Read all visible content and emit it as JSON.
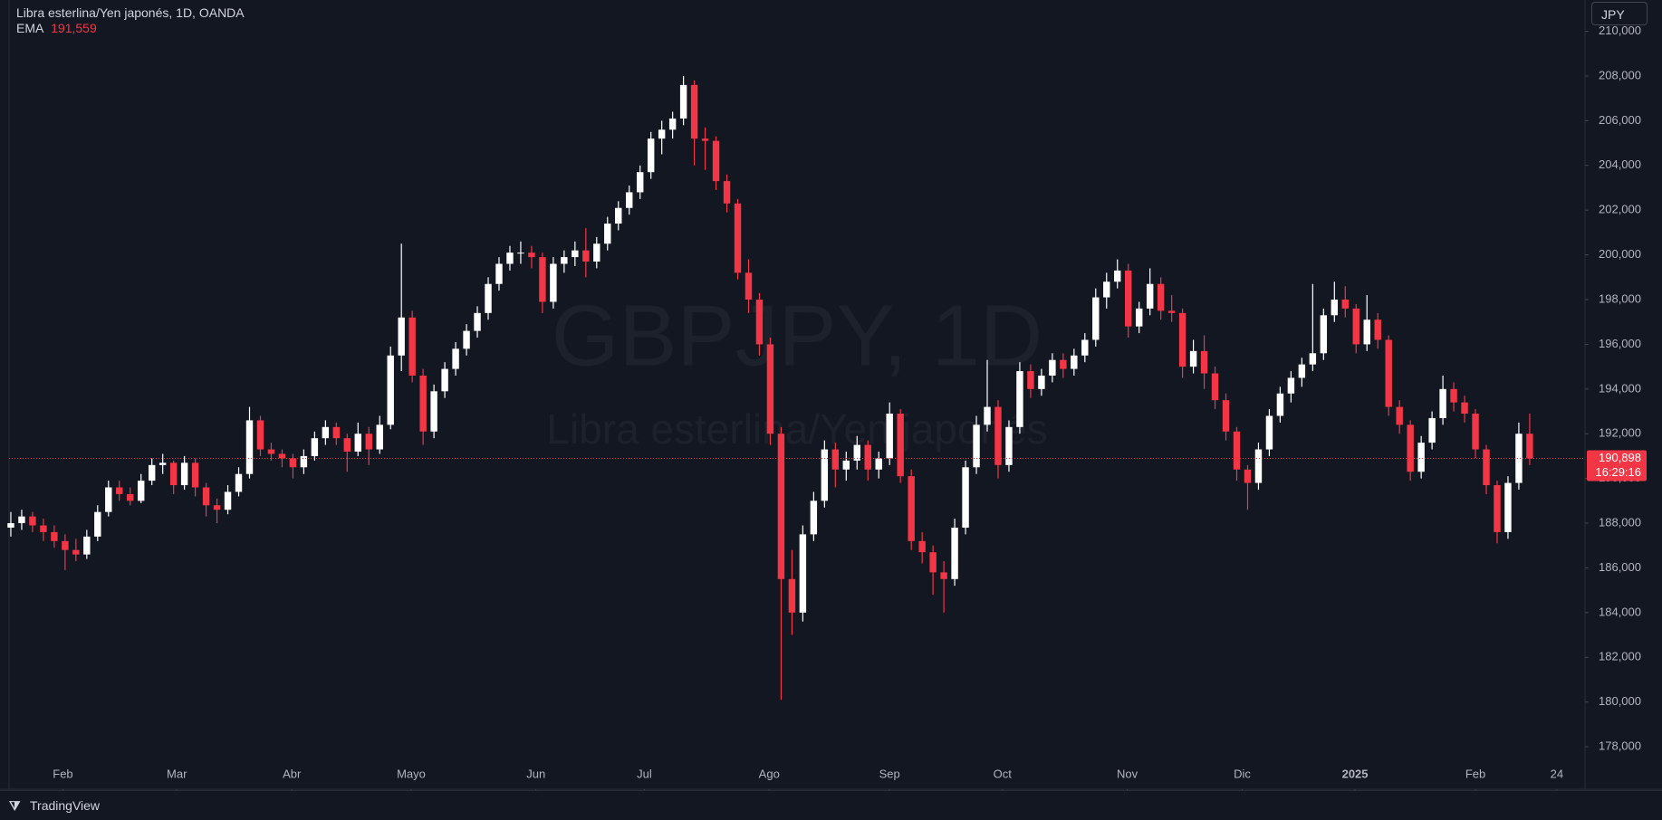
{
  "header": {
    "symbol": "Libra esterlina/Yen japonés, 1D, OANDA",
    "indicator": "EMA",
    "indicator_value": "191,559"
  },
  "watermark": {
    "symbol": "GBPJPY, 1D",
    "name": "Libra esterlina/Yen japonés"
  },
  "currency_button": "JPY",
  "footer": "TradingView",
  "chart_data": {
    "type": "candlestick",
    "up_color": "#ffffff",
    "down_color": "#f23645",
    "candles": [
      [
        187.8,
        188.5,
        187.4,
        188.0
      ],
      [
        188.0,
        188.6,
        187.7,
        188.3
      ],
      [
        188.3,
        188.5,
        187.6,
        187.9
      ],
      [
        187.9,
        188.2,
        187.2,
        187.6
      ],
      [
        187.6,
        187.9,
        186.9,
        187.2
      ],
      [
        187.2,
        187.5,
        185.9,
        186.8
      ],
      [
        186.8,
        187.3,
        186.3,
        186.6
      ],
      [
        186.6,
        187.7,
        186.4,
        187.4
      ],
      [
        187.4,
        188.8,
        187.2,
        188.5
      ],
      [
        188.5,
        189.9,
        188.3,
        189.6
      ],
      [
        189.6,
        189.9,
        189.0,
        189.3
      ],
      [
        189.3,
        189.6,
        188.8,
        189.0
      ],
      [
        189.0,
        190.2,
        188.9,
        189.9
      ],
      [
        189.9,
        190.9,
        189.7,
        190.6
      ],
      [
        190.6,
        191.1,
        190.2,
        190.7
      ],
      [
        190.7,
        190.8,
        189.3,
        189.7
      ],
      [
        189.7,
        191.0,
        189.5,
        190.7
      ],
      [
        190.7,
        190.9,
        189.2,
        189.6
      ],
      [
        189.6,
        189.8,
        188.3,
        188.8
      ],
      [
        188.8,
        189.1,
        188.0,
        188.6
      ],
      [
        188.6,
        189.7,
        188.4,
        189.4
      ],
      [
        189.4,
        190.5,
        189.2,
        190.2
      ],
      [
        190.2,
        193.2,
        190.0,
        192.6
      ],
      [
        192.6,
        192.8,
        191.0,
        191.3
      ],
      [
        191.3,
        191.6,
        190.8,
        191.1
      ],
      [
        191.1,
        191.3,
        190.5,
        190.9
      ],
      [
        190.9,
        191.1,
        190.0,
        190.5
      ],
      [
        190.5,
        191.3,
        190.2,
        191.0
      ],
      [
        191.0,
        192.1,
        190.8,
        191.8
      ],
      [
        191.8,
        192.6,
        191.5,
        192.3
      ],
      [
        192.3,
        192.5,
        191.5,
        191.8
      ],
      [
        191.8,
        192.0,
        190.3,
        191.2
      ],
      [
        191.2,
        192.5,
        191.0,
        192.0
      ],
      [
        192.0,
        192.3,
        190.6,
        191.3
      ],
      [
        191.3,
        192.8,
        191.1,
        192.4
      ],
      [
        192.4,
        195.9,
        192.2,
        195.5
      ],
      [
        195.5,
        200.5,
        194.8,
        197.2
      ],
      [
        197.2,
        197.5,
        194.3,
        194.6
      ],
      [
        194.6,
        194.9,
        191.5,
        192.1
      ],
      [
        192.1,
        194.2,
        191.8,
        193.9
      ],
      [
        193.9,
        195.2,
        193.6,
        194.9
      ],
      [
        194.9,
        196.1,
        194.6,
        195.8
      ],
      [
        195.8,
        196.9,
        195.5,
        196.6
      ],
      [
        196.6,
        197.7,
        196.3,
        197.4
      ],
      [
        197.4,
        199.0,
        197.1,
        198.7
      ],
      [
        198.7,
        199.9,
        198.4,
        199.6
      ],
      [
        199.6,
        200.4,
        199.3,
        200.1
      ],
      [
        200.1,
        200.6,
        199.6,
        200.1
      ],
      [
        200.1,
        200.4,
        199.4,
        199.9
      ],
      [
        199.9,
        200.1,
        197.4,
        197.9
      ],
      [
        197.9,
        199.9,
        197.6,
        199.6
      ],
      [
        199.6,
        200.2,
        199.2,
        199.9
      ],
      [
        199.9,
        200.6,
        199.5,
        200.2
      ],
      [
        200.2,
        201.2,
        199.0,
        199.7
      ],
      [
        199.7,
        200.8,
        199.4,
        200.5
      ],
      [
        200.5,
        201.7,
        200.2,
        201.4
      ],
      [
        201.4,
        202.4,
        201.1,
        202.1
      ],
      [
        202.1,
        203.1,
        201.8,
        202.8
      ],
      [
        202.8,
        204.0,
        202.5,
        203.7
      ],
      [
        203.7,
        205.5,
        203.4,
        205.2
      ],
      [
        205.2,
        206.0,
        204.5,
        205.6
      ],
      [
        205.6,
        206.4,
        205.2,
        206.1
      ],
      [
        206.1,
        208.0,
        205.8,
        207.6
      ],
      [
        207.6,
        207.8,
        204.0,
        205.2
      ],
      [
        205.2,
        205.7,
        203.8,
        205.1
      ],
      [
        205.1,
        205.3,
        202.9,
        203.3
      ],
      [
        203.3,
        203.6,
        201.9,
        202.3
      ],
      [
        202.3,
        202.5,
        198.9,
        199.2
      ],
      [
        199.2,
        199.8,
        197.4,
        198.0
      ],
      [
        198.0,
        198.3,
        195.5,
        196.0
      ],
      [
        196.0,
        196.3,
        191.5,
        192.0
      ],
      [
        192.0,
        192.3,
        180.1,
        185.5
      ],
      [
        185.5,
        186.8,
        183.0,
        184.0
      ],
      [
        184.0,
        187.9,
        183.6,
        187.5
      ],
      [
        187.5,
        189.4,
        187.2,
        189.0
      ],
      [
        189.0,
        191.7,
        188.7,
        191.3
      ],
      [
        191.3,
        191.6,
        189.6,
        190.4
      ],
      [
        190.4,
        191.2,
        189.9,
        190.8
      ],
      [
        190.8,
        191.9,
        190.4,
        191.5
      ],
      [
        191.5,
        191.7,
        189.9,
        190.4
      ],
      [
        190.4,
        191.2,
        190.0,
        190.9
      ],
      [
        190.9,
        193.4,
        190.6,
        192.9
      ],
      [
        192.9,
        193.1,
        189.8,
        190.1
      ],
      [
        190.1,
        190.4,
        186.8,
        187.2
      ],
      [
        187.2,
        187.6,
        186.2,
        186.7
      ],
      [
        186.7,
        187.0,
        184.8,
        185.8
      ],
      [
        185.8,
        186.3,
        184.0,
        185.5
      ],
      [
        185.5,
        188.2,
        185.2,
        187.8
      ],
      [
        187.8,
        190.8,
        187.5,
        190.5
      ],
      [
        190.5,
        192.8,
        190.2,
        192.4
      ],
      [
        192.4,
        195.3,
        192.1,
        193.2
      ],
      [
        193.2,
        193.5,
        190.0,
        190.6
      ],
      [
        190.6,
        192.6,
        190.3,
        192.3
      ],
      [
        192.3,
        195.2,
        192.0,
        194.8
      ],
      [
        194.8,
        195.1,
        193.6,
        194.0
      ],
      [
        194.0,
        194.9,
        193.7,
        194.6
      ],
      [
        194.6,
        195.6,
        194.3,
        195.3
      ],
      [
        195.3,
        195.6,
        194.5,
        194.9
      ],
      [
        194.9,
        195.8,
        194.6,
        195.5
      ],
      [
        195.5,
        196.5,
        195.2,
        196.2
      ],
      [
        196.2,
        198.5,
        195.9,
        198.1
      ],
      [
        198.1,
        199.2,
        197.6,
        198.8
      ],
      [
        198.8,
        199.8,
        198.5,
        199.3
      ],
      [
        199.3,
        199.6,
        196.3,
        196.8
      ],
      [
        196.8,
        197.9,
        196.5,
        197.6
      ],
      [
        197.6,
        199.4,
        197.3,
        198.7
      ],
      [
        198.7,
        199.0,
        197.1,
        197.5
      ],
      [
        197.5,
        198.2,
        197.0,
        197.4
      ],
      [
        197.4,
        197.6,
        194.5,
        195.0
      ],
      [
        195.0,
        196.2,
        194.7,
        195.7
      ],
      [
        195.7,
        196.4,
        194.0,
        194.7
      ],
      [
        194.7,
        195.0,
        193.1,
        193.5
      ],
      [
        193.5,
        193.8,
        191.7,
        192.1
      ],
      [
        192.1,
        192.3,
        189.9,
        190.4
      ],
      [
        190.4,
        190.6,
        188.6,
        189.8
      ],
      [
        189.8,
        191.6,
        189.5,
        191.3
      ],
      [
        191.3,
        193.1,
        191.0,
        192.8
      ],
      [
        192.8,
        194.1,
        192.5,
        193.8
      ],
      [
        193.8,
        194.8,
        193.4,
        194.5
      ],
      [
        194.5,
        195.4,
        194.1,
        195.1
      ],
      [
        195.1,
        198.7,
        194.8,
        195.6
      ],
      [
        195.6,
        197.6,
        195.3,
        197.3
      ],
      [
        197.3,
        198.8,
        197.0,
        198.0
      ],
      [
        198.0,
        198.6,
        197.2,
        197.6
      ],
      [
        197.6,
        197.8,
        195.6,
        196.0
      ],
      [
        196.0,
        198.2,
        195.7,
        197.1
      ],
      [
        197.1,
        197.4,
        195.8,
        196.2
      ],
      [
        196.2,
        196.4,
        192.8,
        193.2
      ],
      [
        193.2,
        193.5,
        192.0,
        192.4
      ],
      [
        192.4,
        192.6,
        189.9,
        190.3
      ],
      [
        190.3,
        191.9,
        190.0,
        191.6
      ],
      [
        191.6,
        193.0,
        191.3,
        192.7
      ],
      [
        192.7,
        194.6,
        192.4,
        194.0
      ],
      [
        194.0,
        194.3,
        193.0,
        193.4
      ],
      [
        193.4,
        193.7,
        192.5,
        192.9
      ],
      [
        192.9,
        193.1,
        190.9,
        191.3
      ],
      [
        191.3,
        191.5,
        189.3,
        189.7
      ],
      [
        189.7,
        189.9,
        187.1,
        187.6
      ],
      [
        187.6,
        190.1,
        187.3,
        189.8
      ],
      [
        189.8,
        192.5,
        189.5,
        192.0
      ],
      [
        192.0,
        192.9,
        190.6,
        190.898
      ]
    ],
    "xlim": [
      -1,
      145.1
    ],
    "xticks": [
      {
        "value": 4.8,
        "label": "Feb"
      },
      {
        "value": 15.3,
        "label": "Mar"
      },
      {
        "value": 25.9,
        "label": "Abr"
      },
      {
        "value": 36.9,
        "label": "Mayo"
      },
      {
        "value": 48.4,
        "label": "Jun"
      },
      {
        "value": 58.4,
        "label": "Jul"
      },
      {
        "value": 69.9,
        "label": "Ago"
      },
      {
        "value": 81,
        "label": "Sep"
      },
      {
        "value": 91.4,
        "label": "Oct"
      },
      {
        "value": 102.9,
        "label": "Nov"
      },
      {
        "value": 113.5,
        "label": "Dic"
      },
      {
        "value": 123.9,
        "label": "2025"
      },
      {
        "value": 135,
        "label": "Feb"
      },
      {
        "value": 142.5,
        "label": "24"
      }
    ],
    "ylim": [
      176.1,
      211.4
    ],
    "yticks": [
      {
        "value": 178,
        "label": "178,000"
      },
      {
        "value": 180,
        "label": "180,000"
      },
      {
        "value": 182,
        "label": "182,000"
      },
      {
        "value": 184,
        "label": "184,000"
      },
      {
        "value": 186,
        "label": "186,000"
      },
      {
        "value": 188,
        "label": "188,000"
      },
      {
        "value": 190,
        "label": "190,000"
      },
      {
        "value": 192,
        "label": "192,000"
      },
      {
        "value": 194,
        "label": "194,000"
      },
      {
        "value": 196,
        "label": "196,000"
      },
      {
        "value": 198,
        "label": "198,000"
      },
      {
        "value": 200,
        "label": "200,000"
      },
      {
        "value": 202,
        "label": "202,000"
      },
      {
        "value": 204,
        "label": "204,000"
      },
      {
        "value": 206,
        "label": "206,000"
      },
      {
        "value": 208,
        "label": "208,000"
      },
      {
        "value": 210,
        "label": "210,000"
      }
    ],
    "last_price": {
      "value": 190.898,
      "label": "190,898"
    },
    "countdown": "16:29:16"
  }
}
